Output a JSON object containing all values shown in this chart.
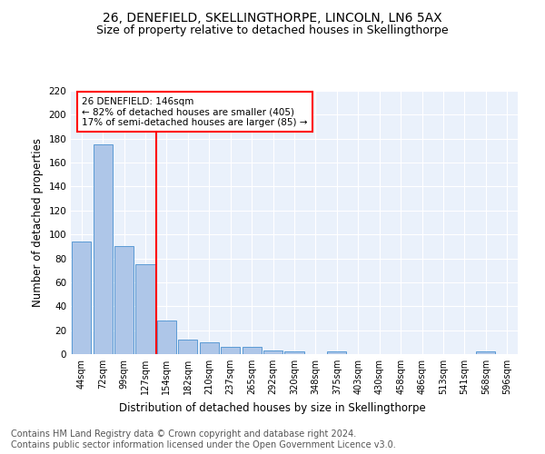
{
  "title": "26, DENEFIELD, SKELLINGTHORPE, LINCOLN, LN6 5AX",
  "subtitle": "Size of property relative to detached houses in Skellingthorpe",
  "xlabel": "Distribution of detached houses by size in Skellingthorpe",
  "ylabel": "Number of detached properties",
  "categories": [
    "44sqm",
    "72sqm",
    "99sqm",
    "127sqm",
    "154sqm",
    "182sqm",
    "210sqm",
    "237sqm",
    "265sqm",
    "292sqm",
    "320sqm",
    "348sqm",
    "375sqm",
    "403sqm",
    "430sqm",
    "458sqm",
    "486sqm",
    "513sqm",
    "541sqm",
    "568sqm",
    "596sqm"
  ],
  "values": [
    94,
    175,
    90,
    75,
    28,
    12,
    10,
    6,
    6,
    3,
    2,
    0,
    2,
    0,
    0,
    0,
    0,
    0,
    0,
    2,
    0
  ],
  "bar_color": "#aec6e8",
  "bar_edgecolor": "#5b9bd5",
  "vline_x": 4.0,
  "vline_color": "red",
  "annotation_text": "26 DENEFIELD: 146sqm\n← 82% of detached houses are smaller (405)\n17% of semi-detached houses are larger (85) →",
  "annotation_box_color": "white",
  "annotation_box_edgecolor": "red",
  "ylim": [
    0,
    220
  ],
  "yticks": [
    0,
    20,
    40,
    60,
    80,
    100,
    120,
    140,
    160,
    180,
    200,
    220
  ],
  "bg_color": "#eaf1fb",
  "footer_text": "Contains HM Land Registry data © Crown copyright and database right 2024.\nContains public sector information licensed under the Open Government Licence v3.0.",
  "title_fontsize": 10,
  "subtitle_fontsize": 9,
  "xlabel_fontsize": 8.5,
  "ylabel_fontsize": 8.5,
  "footer_fontsize": 7,
  "annotation_fontsize": 7.5
}
